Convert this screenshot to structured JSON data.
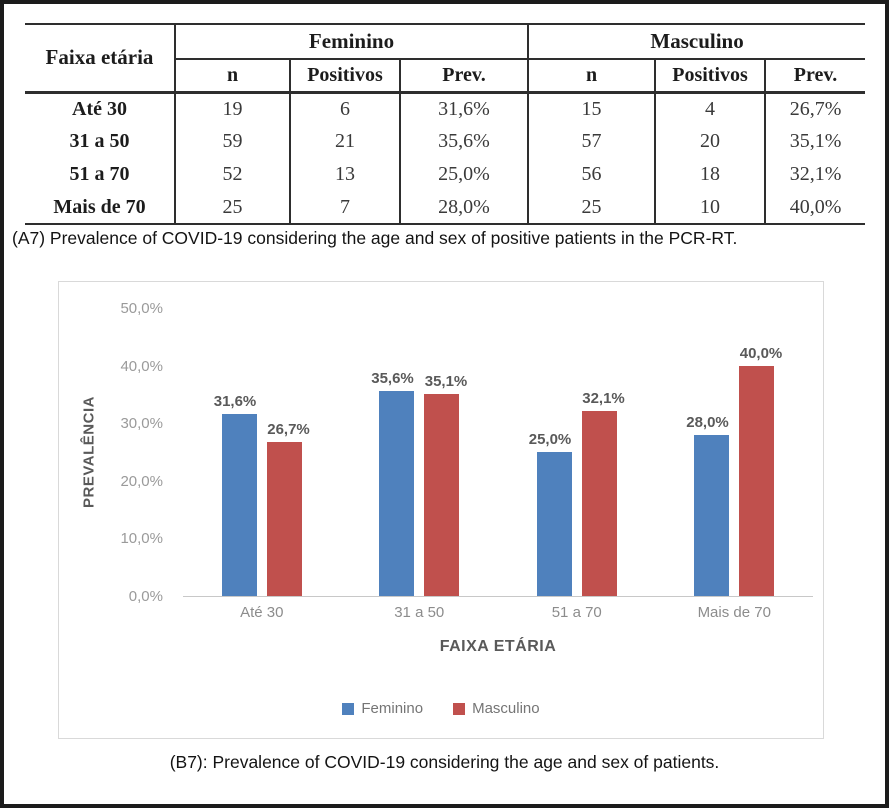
{
  "chart_data": [
    {
      "type": "table",
      "corner_label": "Faixa etária",
      "group_headers": [
        "Feminino",
        "Masculino"
      ],
      "sub_headers": [
        "n",
        "Positivos",
        "Prev."
      ],
      "rows": [
        [
          "Até 30",
          "19",
          "6",
          "31,6%",
          "15",
          "4",
          "26,7%"
        ],
        [
          "31 a 50",
          "59",
          "21",
          "35,6%",
          "57",
          "20",
          "35,1%"
        ],
        [
          "51 a 70",
          "52",
          "13",
          "25,0%",
          "56",
          "18",
          "32,1%"
        ],
        [
          "Mais de 70",
          "25",
          "7",
          "28,0%",
          "25",
          "10",
          "40,0%"
        ]
      ],
      "caption": "(A7) Prevalence of COVID-19 considering the age and sex of positive patients in the PCR-RT."
    },
    {
      "type": "bar",
      "categories": [
        "Até 30",
        "31 a 50",
        "51 a 70",
        "Mais de 70"
      ],
      "series": [
        {
          "name": "Feminino",
          "color": "#4f81bd",
          "values": [
            31.6,
            35.6,
            25.0,
            28.0
          ],
          "labels": [
            "31,6%",
            "35,6%",
            "25,0%",
            "28,0%"
          ]
        },
        {
          "name": "Masculino",
          "color": "#c0504d",
          "values": [
            26.7,
            35.1,
            32.1,
            40.0
          ],
          "labels": [
            "26,7%",
            "35,1%",
            "32,1%",
            "40,0%"
          ]
        }
      ],
      "xlabel": "FAIXA ETÁRIA",
      "ylabel": "PREVALÊNCIA",
      "ylim": [
        0,
        50
      ],
      "yticks": [
        "50,0%",
        "40,0%",
        "30,0%",
        "20,0%",
        "10,0%",
        "0,0%"
      ],
      "grid": false,
      "legend_position": "bottom",
      "caption": "(B7): Prevalence of COVID-19 considering the age and sex of patients."
    }
  ]
}
